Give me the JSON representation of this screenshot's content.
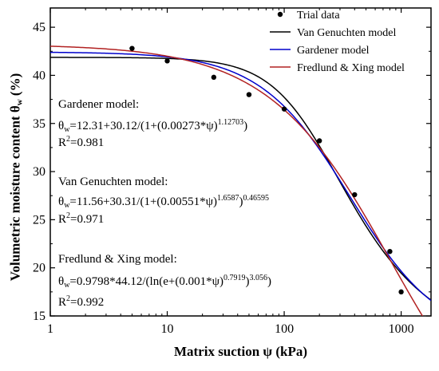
{
  "chart_data": {
    "type": "line",
    "xscale": "log",
    "xlim": [
      1,
      1800
    ],
    "ylim": [
      15,
      47
    ],
    "xticks": [
      1,
      10,
      100,
      1000
    ],
    "xtick_labels": [
      "1",
      "10",
      "100",
      "1000"
    ],
    "yticks": [
      15,
      20,
      25,
      30,
      35,
      40,
      45
    ],
    "ytick_labels": [
      "15",
      "20",
      "25",
      "30",
      "35",
      "40",
      "45"
    ],
    "xlabel_prefix": "Matrix suction",
    "xlabel_symbol": "ψ",
    "xlabel_unit": "(kPa)",
    "ylabel_prefix": "Volumetric moisture content",
    "ylabel_symbol": "θ",
    "ylabel_sub": "w",
    "ylabel_unit": "(%)",
    "legend_position": "top-right",
    "trial": {
      "name": "Trial data",
      "x": [
        5,
        10,
        25,
        50,
        100,
        200,
        400,
        800,
        1000
      ],
      "y": [
        42.8,
        41.5,
        39.8,
        38.0,
        36.5,
        33.2,
        27.6,
        21.7,
        17.5
      ]
    },
    "models": [
      {
        "key": "vg",
        "name": "Van Genuchten model",
        "color": "#000000",
        "a": 11.56,
        "b": 30.31,
        "alpha": 0.00551,
        "n": 1.6587,
        "m": 0.46595
      },
      {
        "key": "gd",
        "name": "Gardener model",
        "color": "#0000cc",
        "a": 12.31,
        "b": 30.12,
        "alpha": 0.00273,
        "n": 1.12703
      },
      {
        "key": "fx",
        "name": "Fredlund & Xing model",
        "color": "#b22222",
        "c": 0.9798,
        "b": 44.12,
        "alpha": 0.001,
        "n": 0.7919,
        "m": 3.056
      }
    ],
    "annotations": {
      "gardener_title": "Gardener model:",
      "gardener_sym": "θ",
      "gardener_sub": "w",
      "gardener_eq": "=12.31+30.12/(1+(0.00273*ψ)",
      "gardener_sup": "1.12703",
      "gardener_close": ")",
      "gardener_r2": "R",
      "gardener_r2sup": "2",
      "gardener_r2val": "=0.981",
      "vg_title": "Van Genuchten model:",
      "vg_sym": "θ",
      "vg_sub": "w",
      "vg_eq": "=11.56+30.31/(1+(0.00551*ψ)",
      "vg_sup1": "1.6587",
      "vg_mid": ")",
      "vg_sup2": "0.46595",
      "vg_r2": "R",
      "vg_r2sup": "2",
      "vg_r2val": "=0.971",
      "fx_title": "Fredlund & Xing model:",
      "fx_sym": "θ",
      "fx_sub": "w",
      "fx_eq": "=0.9798*44.12/(ln(e+(0.001*ψ)",
      "fx_sup1": "0.7919",
      "fx_mid": ")",
      "fx_sup2": "3.056",
      "fx_close": ")",
      "fx_r2": "R",
      "fx_r2sup": "2",
      "fx_r2val": "=0.992"
    }
  }
}
